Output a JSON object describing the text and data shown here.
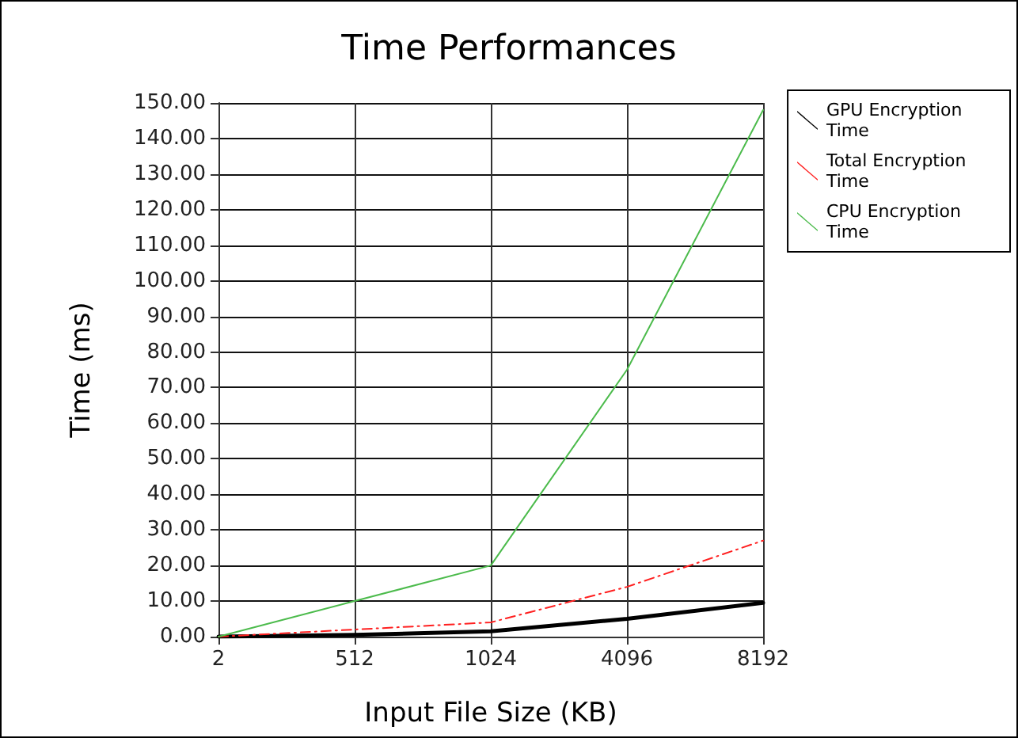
{
  "chart_data": {
    "type": "line",
    "title": "Time Performances",
    "xlabel": "Input File Size (KB)",
    "ylabel": "Time (ms)",
    "categories": [
      "2",
      "512",
      "1024",
      "4096",
      "8192"
    ],
    "series": [
      {
        "name": "GPU Encryption Time",
        "color": "#000000",
        "line_style": "solid",
        "values": [
          0,
          0.5,
          1.5,
          5,
          9.5
        ]
      },
      {
        "name": "Total Encryption Time",
        "color": "#ff2020",
        "line_style": "dashed",
        "values": [
          0,
          2,
          4,
          14,
          27
        ]
      },
      {
        "name": "CPU Encryption Time",
        "color": "#4cbb4c",
        "line_style": "solid",
        "values": [
          0,
          10,
          20,
          75,
          148
        ]
      }
    ],
    "ylim": [
      0,
      150
    ],
    "yticks": [
      {
        "value": 0,
        "label": "0.00"
      },
      {
        "value": 10,
        "label": "10.00"
      },
      {
        "value": 20,
        "label": "20.00"
      },
      {
        "value": 30,
        "label": "30.00"
      },
      {
        "value": 40,
        "label": "40.00"
      },
      {
        "value": 50,
        "label": "50.00"
      },
      {
        "value": 60,
        "label": "60.00"
      },
      {
        "value": 70,
        "label": "70.00"
      },
      {
        "value": 80,
        "label": "80.00"
      },
      {
        "value": 90,
        "label": "90.00"
      },
      {
        "value": 100,
        "label": "100.00"
      },
      {
        "value": 110,
        "label": "110.00"
      },
      {
        "value": 120,
        "label": "120.00"
      },
      {
        "value": 130,
        "label": "130.00"
      },
      {
        "value": 140,
        "label": "140.00"
      },
      {
        "value": 150,
        "label": "150.00"
      }
    ],
    "grid": true,
    "legend": "top right",
    "marker": "none"
  }
}
